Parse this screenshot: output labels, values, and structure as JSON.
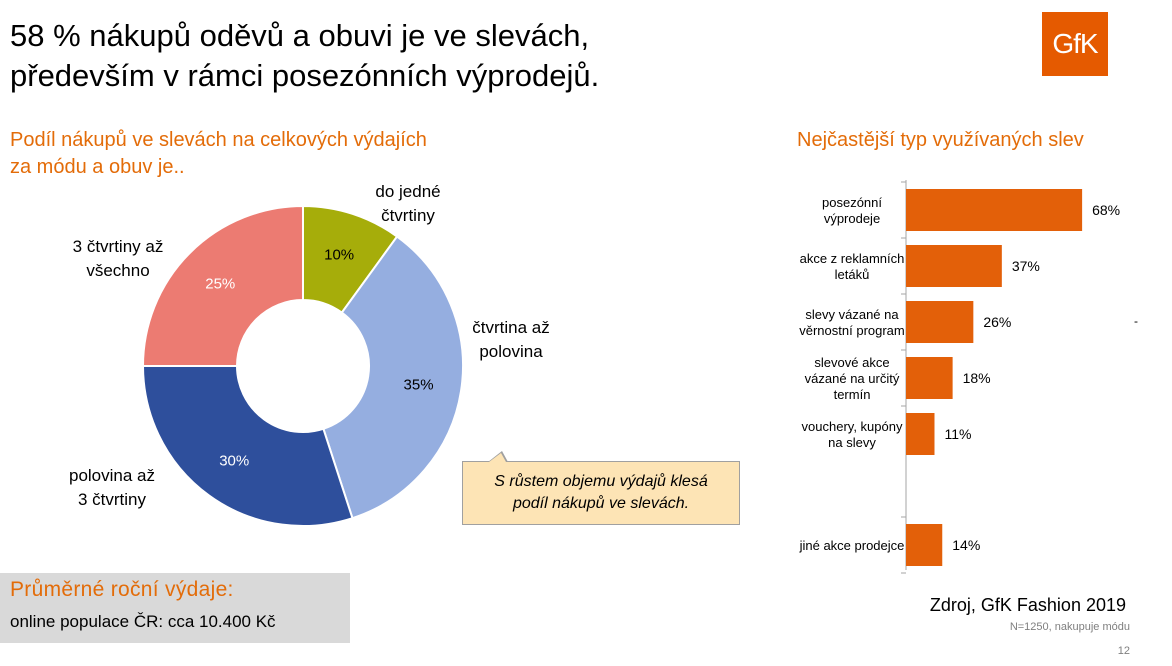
{
  "title": {
    "line1": "58 % nákupů oděvů a obuvi je ve slevách,",
    "line2": "především v rámci posezónních výprodejů."
  },
  "logo": {
    "text": "GfK",
    "color": "#e55a00"
  },
  "left_subtitle": {
    "line1": "Podíl nákupů ve slevách na celkových výdajích",
    "line2": "za módu a obuv je.."
  },
  "right_subtitle": "Nejčastější typ využívaných slev",
  "callout": {
    "line1": "S růstem objemu výdajů klesá",
    "line2": "podíl nákupů ve slevách."
  },
  "avg_box": {
    "title": "Průměrné roční výdaje:",
    "text": "online populace ČR: cca 10.400 Kč"
  },
  "source": "Zdroj, GfK Fashion 2019",
  "note": "N=1250, nakupuje módu",
  "page_number": "12",
  "dash": "-",
  "chart_data": [
    {
      "type": "pie",
      "donut": true,
      "title": "",
      "categories": [
        [
          "do jedné",
          "čtvrtiny"
        ],
        [
          "čtvrtina až",
          "polovina"
        ],
        [
          "polovina až",
          "3 čtvrtiny"
        ],
        [
          "3 čtvrtiny až",
          "všechno"
        ]
      ],
      "values": [
        10,
        35,
        30,
        25
      ],
      "data_labels": [
        "10%",
        "35%",
        "30%",
        "25%"
      ],
      "colors": [
        "#a6ad0a",
        "#95aee0",
        "#2e4f9c",
        "#ec7b72"
      ]
    },
    {
      "type": "bar",
      "orientation": "horizontal",
      "title": "",
      "categories": [
        [
          "posezónní",
          "výprodeje"
        ],
        [
          "akce z reklamních",
          "letáků"
        ],
        [
          "slevy vázané na",
          "věrnostní program"
        ],
        [
          "slevové akce",
          "vázané na určitý",
          "termín"
        ],
        [
          "vouchery, kupóny",
          "na slevy"
        ],
        [
          "jiné akce prodejce"
        ]
      ],
      "values": [
        68,
        37,
        26,
        18,
        11,
        14
      ],
      "data_labels": [
        "68%",
        "37%",
        "26%",
        "18%",
        "11%",
        "14%"
      ],
      "xlim": [
        0,
        100
      ],
      "color": "#e36009"
    }
  ]
}
